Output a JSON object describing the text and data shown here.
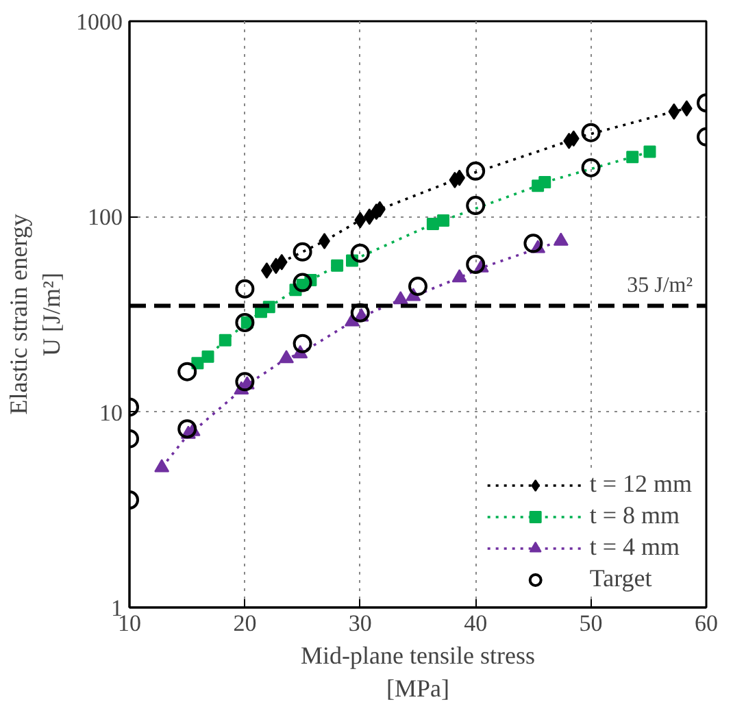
{
  "chart_data": {
    "type": "line",
    "xlabel": "Mid-plane tensile stress\n[MPa]",
    "ylabel": "Elastic strain energy\nU [J/m²]",
    "log": "y",
    "xlim": [
      10,
      60
    ],
    "ylim": [
      1,
      1000
    ],
    "xticks": [
      10,
      20,
      30,
      40,
      50,
      60
    ],
    "yticks": [
      1,
      10,
      100,
      1000
    ],
    "grid": true,
    "legend": "bottom right",
    "series": [
      {
        "name": "t = 12 mm",
        "color": "#000000",
        "marker": "diamond",
        "line_style": "dotted",
        "x": [
          21.9,
          22.7,
          23.2,
          26.9,
          30.0,
          30.8,
          31.4,
          31.7,
          38.2,
          38.6,
          48.1,
          48.5,
          57.2,
          58.3
        ],
        "values": [
          53,
          56,
          58.5,
          75,
          96,
          100,
          106,
          109,
          154,
          158,
          244,
          251,
          345,
          358
        ]
      },
      {
        "name": "t = 8 mm",
        "color": "#00b050",
        "marker": "square",
        "line_style": "dotted",
        "x": [
          15.9,
          16.8,
          18.3,
          20.2,
          21.4,
          22.1,
          24.4,
          25.0,
          25.7,
          28.0,
          29.3,
          36.3,
          37.2,
          45.4,
          46.0,
          53.6,
          55.1
        ],
        "values": [
          17.8,
          19.2,
          23.3,
          28.7,
          32.6,
          34.5,
          42.2,
          44.7,
          47.3,
          56.2,
          59.6,
          91.7,
          95.6,
          144,
          150,
          202,
          215
        ]
      },
      {
        "name": "t = 4 mm",
        "color": "#7030a0",
        "marker": "triangle",
        "line_style": "dotted",
        "x": [
          12.8,
          15.1,
          15.5,
          19.7,
          20.2,
          23.6,
          24.8,
          29.3,
          30.1,
          33.5,
          34.6,
          38.6,
          40.5,
          45.4,
          47.4
        ],
        "values": [
          5.2,
          7.7,
          7.95,
          13.0,
          13.8,
          18.8,
          19.9,
          29,
          30.7,
          37.6,
          39.1,
          48.7,
          54.7,
          68.8,
          75
        ]
      },
      {
        "name": "Target",
        "type": "scatter",
        "color": "#000000",
        "marker": "circle",
        "x": [
          10,
          10,
          10,
          15,
          15,
          20,
          20,
          20,
          25,
          25,
          25,
          30,
          30,
          35,
          40,
          40,
          40,
          45,
          50,
          50,
          60,
          60
        ],
        "values": [
          10.6,
          7.3,
          3.55,
          16.1,
          8.2,
          42.7,
          28.7,
          14.3,
          66,
          46,
          22.4,
          65,
          32.2,
          44,
          171,
          114,
          57,
          73,
          269,
          178,
          382,
          256
        ]
      }
    ],
    "ref_lines": [
      {
        "axis": "y",
        "value": 35,
        "label": "35 J/m²",
        "color": "#000000",
        "line_style": "dashed"
      }
    ]
  }
}
